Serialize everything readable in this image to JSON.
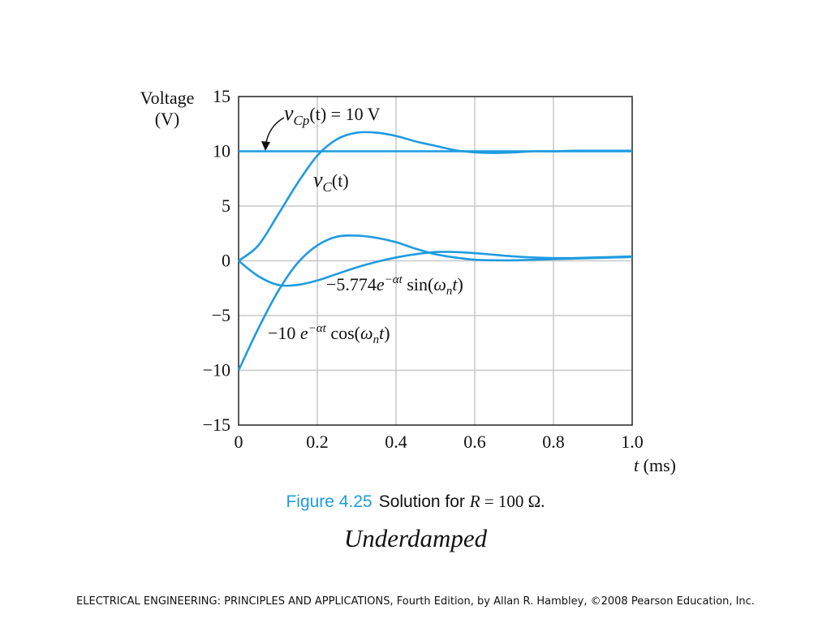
{
  "slide": {
    "figure_label": "Figure 4.25",
    "figure_caption_text": "Solution for",
    "figure_caption_math_var": "R",
    "figure_caption_math_rest": " = 100 Ω.",
    "title": "Underdamped",
    "footer": "ELECTRICAL ENGINEERING: PRINCIPLES AND APPLICATIONS, Fourth Edition, by Allan R. Hambley, ©2008 Pearson Education, Inc."
  },
  "chart_data": {
    "type": "line",
    "ylabel_line1": "Voltage",
    "ylabel_line2": "(V)",
    "xlabel_var": "t",
    "xlabel_unit": " (ms)",
    "xlim": [
      0,
      1.0
    ],
    "ylim": [
      -15,
      15
    ],
    "x_ticks": [
      "0",
      "0.2",
      "0.4",
      "0.6",
      "0.8",
      "1.0"
    ],
    "y_ticks": [
      "15",
      "10",
      "5",
      "0",
      "−5",
      "−10",
      "−15"
    ],
    "grid": true,
    "line_color": "#1e9be0",
    "series": [
      {
        "name": "vCp(t) = 10 V",
        "x": [
          0,
          1.0
        ],
        "y": [
          10,
          10
        ]
      },
      {
        "name": "vC(t)",
        "x": [
          0,
          0.05,
          0.1,
          0.15,
          0.2,
          0.25,
          0.3,
          0.35,
          0.4,
          0.45,
          0.5,
          0.55,
          0.6,
          0.65,
          0.7,
          0.75,
          0.8,
          0.85,
          0.9,
          0.95,
          1.0
        ],
        "y": [
          0,
          1.4,
          4.2,
          7.1,
          9.6,
          11.1,
          11.7,
          11.7,
          11.4,
          10.9,
          10.5,
          10.1,
          9.9,
          9.85,
          9.9,
          10.0,
          10.0,
          10.05,
          10.05,
          10.05,
          10.05
        ]
      },
      {
        "name": "−5.774e^(−αt) sin(ωn t)",
        "x": [
          0,
          0.05,
          0.1,
          0.15,
          0.2,
          0.25,
          0.3,
          0.35,
          0.4,
          0.45,
          0.5,
          0.55,
          0.6,
          0.65,
          0.7,
          0.75,
          0.8,
          0.85,
          0.9,
          0.95,
          1.0
        ],
        "y": [
          0,
          -1.4,
          -2.2,
          -2.2,
          -1.8,
          -1.2,
          -0.6,
          -0.1,
          0.3,
          0.6,
          0.8,
          0.8,
          0.7,
          0.55,
          0.4,
          0.3,
          0.25,
          0.25,
          0.3,
          0.35,
          0.4
        ]
      },
      {
        "name": "−10 e^(−αt) cos(ωn t)",
        "x": [
          0,
          0.05,
          0.1,
          0.15,
          0.2,
          0.25,
          0.3,
          0.35,
          0.4,
          0.45,
          0.5,
          0.55,
          0.6,
          0.65,
          0.7,
          0.75,
          0.8,
          0.85,
          0.9,
          0.95,
          1.0
        ],
        "y": [
          -10,
          -6.2,
          -2.8,
          -0.2,
          1.4,
          2.2,
          2.3,
          2.1,
          1.7,
          1.1,
          0.6,
          0.3,
          0.1,
          0.05,
          0.05,
          0.1,
          0.15,
          0.2,
          0.25,
          0.3,
          0.35
        ]
      }
    ],
    "annotations": {
      "vcp": {
        "v": "v",
        "sub": "Cp",
        "rest": "(t) = 10 V"
      },
      "vc": {
        "v": "v",
        "sub": "C",
        "rest": "(t)"
      },
      "sin": {
        "coef": "−5.774",
        "e": "e",
        "exp": "−αt",
        "fn": " sin(",
        "w": "ω",
        "wsub": "n",
        "t": "t",
        "close": ")"
      },
      "cos": {
        "coef": "−10 ",
        "e": "e",
        "exp": "−αt",
        "fn": " cos(",
        "w": "ω",
        "wsub": "n",
        "t": "t",
        "close": ")"
      }
    }
  }
}
